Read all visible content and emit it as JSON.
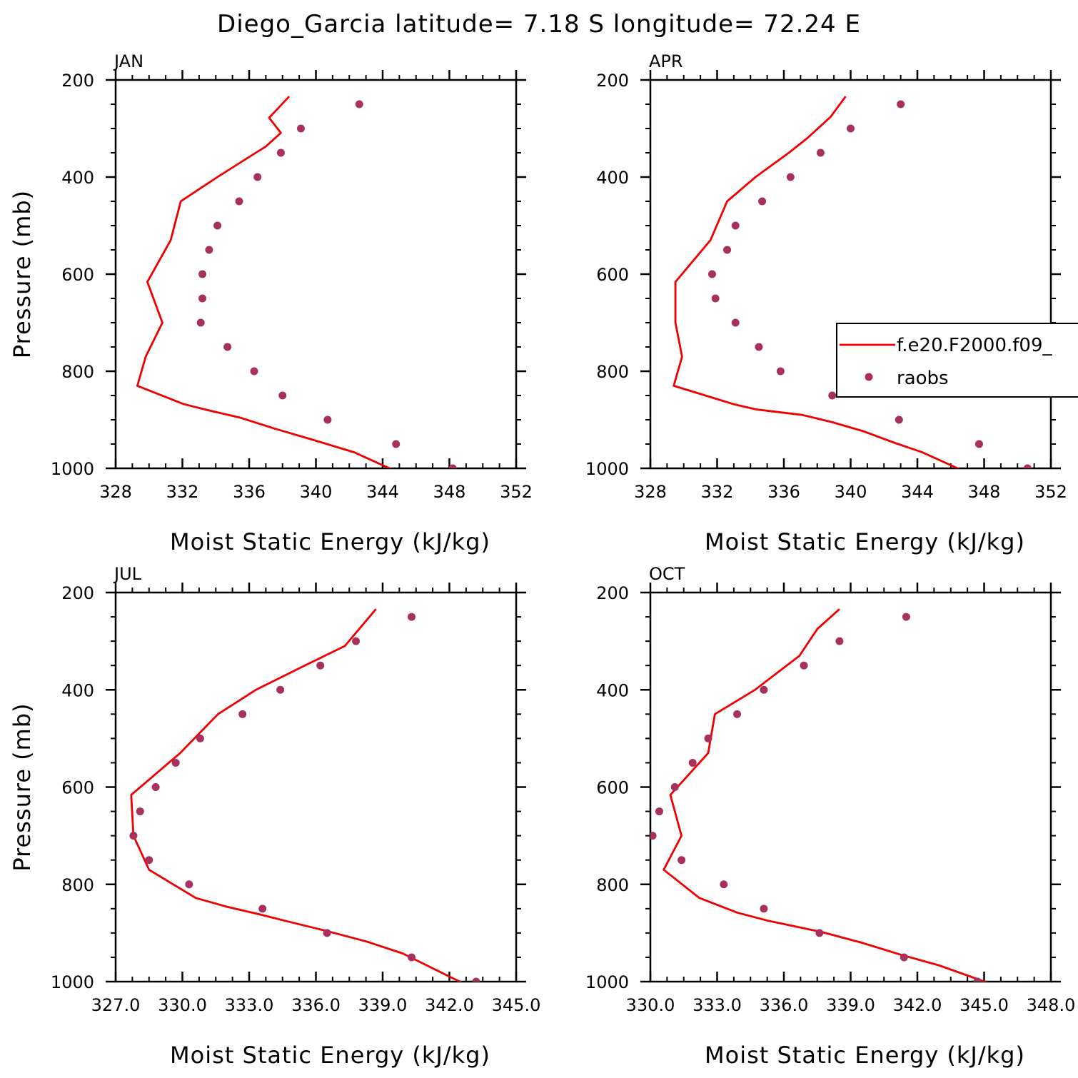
{
  "figure": {
    "title": "Diego_Garcia  latitude= 7.18 S longitude= 72.24 E",
    "colors": {
      "model": "#ee0000",
      "obs": "#a8305e"
    },
    "legend": {
      "model_label": "f.e20.F2000.f09_",
      "obs_label": "raobs",
      "panel": 1,
      "placement": "right, clipped at figure edge"
    }
  },
  "chart_data": [
    {
      "type": "line",
      "title": "JAN",
      "xlabel": "Moist Static Energy (kJ/kg)",
      "ylabel": "Pressure (mb)",
      "xlim": [
        328,
        352
      ],
      "ylim": [
        1000,
        200
      ],
      "y_inverted": true,
      "xticks": [
        328,
        332,
        336,
        340,
        344,
        348,
        352
      ],
      "xtick_labels": [
        "328",
        "332",
        "336",
        "340",
        "344",
        "348",
        "352"
      ],
      "yticks": [
        200,
        400,
        600,
        800,
        1000
      ],
      "ytick_labels": [
        "200",
        "400",
        "600",
        "800",
        "1000"
      ],
      "show_ylabel": true,
      "series": [
        {
          "name": "f.e20.F2000.f09_",
          "kind": "line",
          "points": [
            [
              344.6,
              1003
            ],
            [
              342.3,
              967
            ],
            [
              339.9,
              942
            ],
            [
              337.5,
              918
            ],
            [
              335.5,
              896
            ],
            [
              333.5,
              880
            ],
            [
              332.1,
              868
            ],
            [
              329.3,
              830
            ],
            [
              329.8,
              770
            ],
            [
              330.8,
              700
            ],
            [
              329.9,
              616
            ],
            [
              331.3,
              530
            ],
            [
              331.9,
              450
            ],
            [
              334.1,
              400
            ],
            [
              336.4,
              350
            ],
            [
              337.0,
              337
            ],
            [
              337.9,
              309
            ],
            [
              337.2,
              278
            ],
            [
              338.4,
              234
            ]
          ]
        },
        {
          "name": "raobs",
          "kind": "scatter",
          "points": [
            [
              348.2,
              1000
            ],
            [
              344.8,
              950
            ],
            [
              340.7,
              900
            ],
            [
              338.0,
              850
            ],
            [
              336.3,
              800
            ],
            [
              334.7,
              750
            ],
            [
              333.1,
              700
            ],
            [
              333.2,
              650
            ],
            [
              333.2,
              600
            ],
            [
              333.6,
              550
            ],
            [
              334.1,
              500
            ],
            [
              335.4,
              450
            ],
            [
              336.5,
              400
            ],
            [
              337.9,
              350
            ],
            [
              339.1,
              300
            ],
            [
              342.6,
              250
            ]
          ]
        }
      ]
    },
    {
      "type": "line",
      "title": "APR",
      "xlabel": "Moist Static Energy (kJ/kg)",
      "ylabel": "Pressure (mb)",
      "xlim": [
        328,
        352
      ],
      "ylim": [
        1000,
        200
      ],
      "y_inverted": true,
      "xticks": [
        328,
        332,
        336,
        340,
        344,
        348,
        352
      ],
      "xtick_labels": [
        "328",
        "332",
        "336",
        "340",
        "344",
        "348",
        "352"
      ],
      "yticks": [
        200,
        400,
        600,
        800,
        1000
      ],
      "ytick_labels": [
        "200",
        "400",
        "600",
        "800",
        "1000"
      ],
      "show_ylabel": false,
      "series": [
        {
          "name": "f.e20.F2000.f09_",
          "kind": "line",
          "points": [
            [
              346.6,
              1003
            ],
            [
              344.3,
              967
            ],
            [
              342.6,
              947
            ],
            [
              340.7,
              923
            ],
            [
              338.9,
              905
            ],
            [
              337.1,
              890
            ],
            [
              334.4,
              879
            ],
            [
              333.0,
              868
            ],
            [
              329.4,
              830
            ],
            [
              329.9,
              770
            ],
            [
              329.5,
              700
            ],
            [
              329.5,
              616
            ],
            [
              331.6,
              530
            ],
            [
              332.6,
              450
            ],
            [
              334.3,
              400
            ],
            [
              336.3,
              350
            ],
            [
              337.4,
              320
            ],
            [
              338.8,
              276
            ],
            [
              339.7,
              234
            ]
          ]
        },
        {
          "name": "raobs",
          "kind": "scatter",
          "points": [
            [
              350.6,
              1000
            ],
            [
              347.7,
              950
            ],
            [
              342.9,
              900
            ],
            [
              338.9,
              850
            ],
            [
              335.8,
              800
            ],
            [
              334.5,
              750
            ],
            [
              333.1,
              700
            ],
            [
              331.9,
              650
            ],
            [
              331.7,
              600
            ],
            [
              332.6,
              550
            ],
            [
              333.1,
              500
            ],
            [
              334.7,
              450
            ],
            [
              336.4,
              400
            ],
            [
              338.2,
              350
            ],
            [
              340.0,
              300
            ],
            [
              343.0,
              250
            ]
          ]
        }
      ]
    },
    {
      "type": "line",
      "title": "JUL",
      "xlabel": "Moist Static Energy (kJ/kg)",
      "ylabel": "Pressure (mb)",
      "xlim": [
        327,
        345
      ],
      "ylim": [
        1000,
        200
      ],
      "y_inverted": true,
      "xticks": [
        327,
        330,
        333,
        336,
        339,
        342,
        345
      ],
      "xtick_labels": [
        "327.0",
        "330.0",
        "333.0",
        "336.0",
        "339.0",
        "342.0",
        "345.0"
      ],
      "yticks": [
        200,
        400,
        600,
        800,
        1000
      ],
      "ytick_labels": [
        "200",
        "400",
        "600",
        "800",
        "1000"
      ],
      "show_ylabel": true,
      "series": [
        {
          "name": "f.e20.F2000.f09_",
          "kind": "line",
          "points": [
            [
              342.6,
              1003
            ],
            [
              341.0,
              967
            ],
            [
              339.9,
              942
            ],
            [
              338.3,
              918
            ],
            [
              336.5,
              896
            ],
            [
              334.8,
              877
            ],
            [
              333.5,
              862
            ],
            [
              332.0,
              846
            ],
            [
              330.6,
              828
            ],
            [
              328.5,
              770
            ],
            [
              327.8,
              700
            ],
            [
              327.7,
              616
            ],
            [
              329.9,
              530
            ],
            [
              331.6,
              450
            ],
            [
              333.3,
              400
            ],
            [
              335.5,
              350
            ],
            [
              337.3,
              310
            ],
            [
              338.7,
              234
            ]
          ]
        },
        {
          "name": "raobs",
          "kind": "scatter",
          "points": [
            [
              343.2,
              1000
            ],
            [
              340.3,
              950
            ],
            [
              336.5,
              900
            ],
            [
              333.6,
              850
            ],
            [
              330.3,
              800
            ],
            [
              328.5,
              750
            ],
            [
              327.8,
              700
            ],
            [
              328.1,
              650
            ],
            [
              328.8,
              600
            ],
            [
              329.7,
              550
            ],
            [
              330.8,
              500
            ],
            [
              332.7,
              450
            ],
            [
              334.4,
              400
            ],
            [
              336.2,
              350
            ],
            [
              337.8,
              300
            ],
            [
              340.3,
              250
            ]
          ]
        }
      ]
    },
    {
      "type": "line",
      "title": "OCT",
      "xlabel": "Moist Static Energy (kJ/kg)",
      "ylabel": "Pressure (mb)",
      "xlim": [
        330,
        348
      ],
      "ylim": [
        1000,
        200
      ],
      "y_inverted": true,
      "xticks": [
        330,
        333,
        336,
        339,
        342,
        345,
        348
      ],
      "xtick_labels": [
        "330.0",
        "333.0",
        "336.0",
        "339.0",
        "342.0",
        "345.0",
        "348.0"
      ],
      "yticks": [
        200,
        400,
        600,
        800,
        1000
      ],
      "ytick_labels": [
        "200",
        "400",
        "600",
        "800",
        "1000"
      ],
      "show_ylabel": false,
      "series": [
        {
          "name": "f.e20.F2000.f09_",
          "kind": "line",
          "points": [
            [
              345.2,
              1003
            ],
            [
              343.0,
              967
            ],
            [
              341.2,
              944
            ],
            [
              339.5,
              920
            ],
            [
              337.7,
              898
            ],
            [
              335.3,
              875
            ],
            [
              333.9,
              858
            ],
            [
              332.2,
              828
            ],
            [
              330.6,
              770
            ],
            [
              331.4,
              700
            ],
            [
              330.9,
              616
            ],
            [
              332.6,
              530
            ],
            [
              332.9,
              450
            ],
            [
              334.7,
              400
            ],
            [
              336.7,
              330
            ],
            [
              337.5,
              275
            ],
            [
              338.5,
              234
            ]
          ]
        },
        {
          "name": "raobs",
          "kind": "scatter",
          "points": [
            [
              344.7,
              1000
            ],
            [
              341.4,
              950
            ],
            [
              337.6,
              900
            ],
            [
              335.1,
              850
            ],
            [
              333.3,
              800
            ],
            [
              331.4,
              750
            ],
            [
              330.1,
              700
            ],
            [
              330.4,
              650
            ],
            [
              331.1,
              600
            ],
            [
              331.9,
              550
            ],
            [
              332.6,
              500
            ],
            [
              333.9,
              450
            ],
            [
              335.1,
              400
            ],
            [
              336.9,
              350
            ],
            [
              338.5,
              300
            ],
            [
              341.5,
              250
            ]
          ]
        }
      ]
    }
  ]
}
